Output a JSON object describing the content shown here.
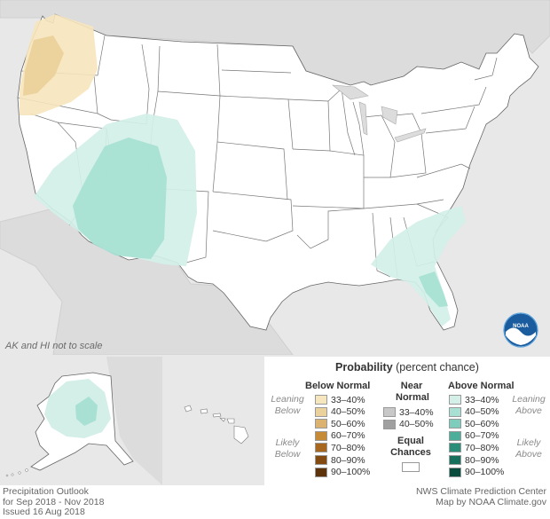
{
  "map": {
    "scale_note": "AK and HI not to scale",
    "logo_text": "NOAA"
  },
  "legend": {
    "title_bold": "Probability",
    "title_rest": "(percent chance)",
    "below": {
      "heading": "Below Normal",
      "leaning_label_1": "Leaning",
      "leaning_label_2": "Below",
      "likely_label_1": "Likely",
      "likely_label_2": "Below",
      "items": [
        {
          "label": "33–40%",
          "color": "#f6e6bd"
        },
        {
          "label": "40–50%",
          "color": "#ebd29c"
        },
        {
          "label": "50–60%",
          "color": "#dcb271"
        },
        {
          "label": "60–70%",
          "color": "#c58b36"
        },
        {
          "label": "70–80%",
          "color": "#a8671f"
        },
        {
          "label": "80–90%",
          "color": "#834b12"
        },
        {
          "label": "90–100%",
          "color": "#5c330a"
        }
      ]
    },
    "near": {
      "heading_1": "Near",
      "heading_2": "Normal",
      "items": [
        {
          "label": "33–40%",
          "color": "#c8c8c8"
        },
        {
          "label": "40–50%",
          "color": "#a0a0a0"
        }
      ],
      "equal_1": "Equal",
      "equal_2": "Chances"
    },
    "above": {
      "heading": "Above Normal",
      "leaning_label_1": "Leaning",
      "leaning_label_2": "Above",
      "likely_label_1": "Likely",
      "likely_label_2": "Above",
      "items": [
        {
          "label": "33–40%",
          "color": "#d3efe8"
        },
        {
          "label": "40–50%",
          "color": "#a8e0d3"
        },
        {
          "label": "50–60%",
          "color": "#7ecdbc"
        },
        {
          "label": "60–70%",
          "color": "#4daf99"
        },
        {
          "label": "70–80%",
          "color": "#2a8e78"
        },
        {
          "label": "80–90%",
          "color": "#16705c"
        },
        {
          "label": "90–100%",
          "color": "#0a4d3e"
        }
      ]
    }
  },
  "footer": {
    "line1": "Precipitation Outlook",
    "line2": "for Sep 2018 - Nov 2018",
    "line3": "Issued 16 Aug 2018",
    "credit1": "NWS Climate Prediction Center",
    "credit2": "Map by NOAA Climate.gov"
  }
}
